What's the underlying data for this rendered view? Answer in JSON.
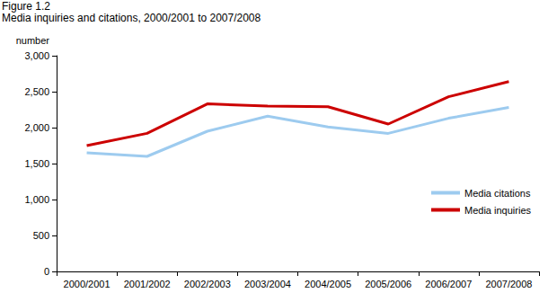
{
  "chart_data": {
    "type": "line",
    "title": "Figure 1.2",
    "subtitle": "Media inquiries and citations, 2000/2001 to 2007/2008",
    "y_label": "number",
    "categories": [
      "2000/2001",
      "2001/2002",
      "2002/2003",
      "2003/2004",
      "2004/2005",
      "2005/2006",
      "2006/2007",
      "2007/2008"
    ],
    "series": [
      {
        "name": "Media citations",
        "color": "#9dcbef",
        "values": [
          1650,
          1600,
          1950,
          2160,
          2010,
          1920,
          2130,
          2280
        ]
      },
      {
        "name": "Media inquiries",
        "color": "#cc0000",
        "values": [
          1750,
          1920,
          2330,
          2300,
          2290,
          2050,
          2430,
          2640
        ]
      }
    ],
    "ylim": [
      0,
      3000
    ],
    "yticks": [
      0,
      500,
      {
        "value": 1000,
        "label": "1,000"
      },
      {
        "value": 1500,
        "label": "1,500"
      },
      {
        "value": 2000,
        "label": "2,000"
      },
      {
        "value": 2500,
        "label": "2,500"
      },
      {
        "value": 3000,
        "label": "3,000"
      }
    ],
    "grid": false,
    "legend": "lower right"
  }
}
